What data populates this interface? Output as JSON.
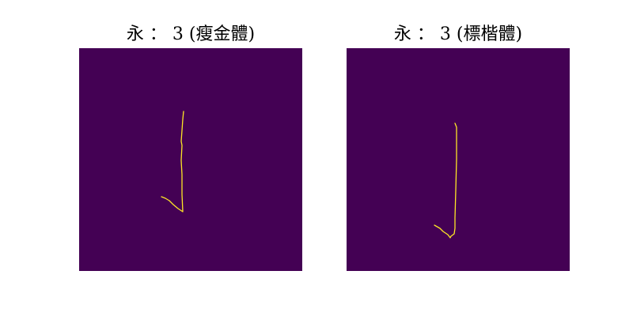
{
  "colors": {
    "background": "#440154",
    "stroke": "#fde725"
  },
  "panels": [
    {
      "title": "永 ： 3 (瘦金體)",
      "stroke_points": [
        [
          132,
          80
        ],
        [
          131,
          90
        ],
        [
          129,
          118
        ],
        [
          130,
          123
        ],
        [
          129,
          142
        ],
        [
          130,
          160
        ],
        [
          130,
          185
        ],
        [
          131,
          207
        ],
        [
          125,
          203
        ],
        [
          119,
          198
        ],
        [
          114,
          193
        ],
        [
          109,
          190
        ],
        [
          104,
          188
        ]
      ]
    },
    {
      "title": "永 ： 3 (標楷體)",
      "stroke_points": [
        [
          137,
          95
        ],
        [
          139,
          100
        ],
        [
          139,
          140
        ],
        [
          138,
          180
        ],
        [
          137,
          215
        ],
        [
          137,
          228
        ],
        [
          136,
          235
        ],
        [
          132,
          238
        ],
        [
          131,
          240
        ],
        [
          128,
          236
        ],
        [
          122,
          232
        ],
        [
          118,
          228
        ],
        [
          111,
          224
        ]
      ]
    }
  ]
}
